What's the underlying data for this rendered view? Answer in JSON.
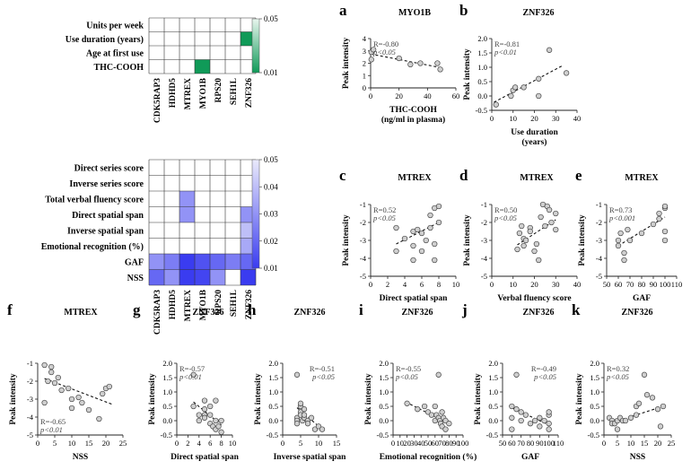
{
  "figure": {
    "heatmap_top": {
      "rows": [
        "Units per week",
        "Use duration (years)",
        "Age at first use",
        "THC-COOH"
      ],
      "cols": [
        "CDK5RAP3",
        "HDHD5",
        "MTREX",
        "MYO1B",
        "RPS20",
        "SEH1L",
        "ZNF326"
      ],
      "cells": [
        {
          "r": 1,
          "c": 6,
          "value": 0.01
        },
        {
          "r": 3,
          "c": 3,
          "value": 0.01
        }
      ],
      "colorbar": {
        "ticks": [
          0.05,
          0.01
        ],
        "range": [
          0.01,
          0.05
        ],
        "color_low": "#109a58",
        "color_high": "#e8f6ee"
      }
    },
    "heatmap_bottom": {
      "rows": [
        "Direct series score",
        "Inverse series score",
        "Total verbal fluency score",
        "Direct spatial span",
        "Inverse spatial span",
        "Emotional recognition (%)",
        "GAF",
        "NSS"
      ],
      "cols": [
        "CDK5RAP3",
        "HDHD5",
        "MTREX",
        "MYO1B",
        "RPS20",
        "SEH1L",
        "ZNF326"
      ],
      "cells": [
        {
          "r": 2,
          "c": 2,
          "value": 0.03
        },
        {
          "r": 3,
          "c": 2,
          "value": 0.03
        },
        {
          "r": 3,
          "c": 6,
          "value": 0.03
        },
        {
          "r": 4,
          "c": 6,
          "value": 0.04
        },
        {
          "r": 5,
          "c": 6,
          "value": 0.035
        },
        {
          "r": 6,
          "c": 0,
          "value": 0.03
        },
        {
          "r": 6,
          "c": 1,
          "value": 0.025
        },
        {
          "r": 6,
          "c": 2,
          "value": 0.01
        },
        {
          "r": 6,
          "c": 3,
          "value": 0.015
        },
        {
          "r": 6,
          "c": 4,
          "value": 0.02
        },
        {
          "r": 6,
          "c": 5,
          "value": 0.025
        },
        {
          "r": 6,
          "c": 6,
          "value": 0.02
        },
        {
          "r": 7,
          "c": 0,
          "value": 0.02
        },
        {
          "r": 7,
          "c": 1,
          "value": 0.03
        },
        {
          "r": 7,
          "c": 2,
          "value": 0.01
        },
        {
          "r": 7,
          "c": 3,
          "value": 0.012
        },
        {
          "r": 7,
          "c": 4,
          "value": 0.03
        },
        {
          "r": 7,
          "c": 6,
          "value": 0.01
        }
      ],
      "colorbar": {
        "ticks": [
          0.05,
          0.04,
          0.03,
          0.02,
          0.01
        ],
        "range": [
          0.01,
          0.05
        ],
        "color_low": "#3a3cf0",
        "color_high": "#eaeafb"
      }
    }
  },
  "chart_data": [
    {
      "id": "a",
      "type": "scatter",
      "title": "MYO1B",
      "xlabel": "THC-COOH",
      "xlabel2": "(ng/ml in plasma)",
      "ylabel": "Peak intensity",
      "xlim": [
        0,
        60
      ],
      "ylim": [
        0,
        4
      ],
      "xticks": [
        0,
        20,
        40,
        60
      ],
      "yticks": [
        0,
        1,
        2,
        3,
        4
      ],
      "r_text": "R=-0.80",
      "p_text": "p<0.05",
      "stat_pos": "top-left",
      "points": [
        [
          0.5,
          2.3
        ],
        [
          0.5,
          2.9
        ],
        [
          2,
          3.1
        ],
        [
          20,
          2.4
        ],
        [
          28,
          1.9
        ],
        [
          35,
          2.0
        ],
        [
          47,
          2.0
        ],
        [
          49,
          1.5
        ]
      ],
      "fit": [
        [
          0,
          2.75
        ],
        [
          49,
          1.65
        ]
      ]
    },
    {
      "id": "b",
      "type": "scatter",
      "title": "ZNF326",
      "xlabel": "Use duration",
      "xlabel2": "(years)",
      "ylabel": "Peak intensity",
      "xlim": [
        0,
        40
      ],
      "ylim": [
        -0.5,
        2.0
      ],
      "xticks": [
        0,
        10,
        20,
        30,
        40
      ],
      "yticks": [
        -0.5,
        0.0,
        0.5,
        1.0,
        1.5,
        2.0
      ],
      "r_text": "R=-0.81",
      "p_text": "p<0.01",
      "stat_pos": "top-left",
      "points": [
        [
          2,
          -0.3
        ],
        [
          9,
          0.0
        ],
        [
          10,
          0.2
        ],
        [
          11,
          0.3
        ],
        [
          15,
          0.3
        ],
        [
          22,
          0.6
        ],
        [
          22,
          0.0
        ],
        [
          27,
          1.6
        ],
        [
          35,
          0.8
        ]
      ],
      "fit": [
        [
          1,
          -0.22
        ],
        [
          33,
          1.05
        ]
      ]
    },
    {
      "id": "c",
      "type": "scatter",
      "title": "MTREX",
      "xlabel": "Direct spatial span",
      "ylabel": "Peak intensity",
      "xlim": [
        0,
        10
      ],
      "ylim": [
        -5,
        -1
      ],
      "xticks": [
        0,
        2,
        4,
        6,
        8,
        10
      ],
      "yticks": [
        -5,
        -4,
        -3,
        -2,
        -1
      ],
      "r_text": "R=0.52",
      "p_text": "p<0.05",
      "stat_pos": "top-left",
      "points": [
        [
          3,
          -2.3
        ],
        [
          3,
          -3.6
        ],
        [
          4,
          -2.9
        ],
        [
          5,
          -2.5
        ],
        [
          5,
          -3.3
        ],
        [
          5,
          -4.1
        ],
        [
          5.5,
          -2.4
        ],
        [
          6,
          -3.6
        ],
        [
          6,
          -2.6
        ],
        [
          6.5,
          -3.0
        ],
        [
          7,
          -1.6
        ],
        [
          7,
          -2.3
        ],
        [
          7.5,
          -1.2
        ],
        [
          7.5,
          -3.2
        ],
        [
          8,
          -2.0
        ],
        [
          8,
          -1.1
        ],
        [
          7.5,
          -4.1
        ]
      ],
      "fit": [
        [
          3,
          -3.2
        ],
        [
          8,
          -2.0
        ]
      ]
    },
    {
      "id": "d",
      "type": "scatter",
      "title": "MTREX",
      "xlabel": "Verbal fluency score",
      "ylabel": "Peak intensity",
      "xlim": [
        0,
        40
      ],
      "ylim": [
        -5,
        -1
      ],
      "xticks": [
        0,
        10,
        20,
        30,
        40
      ],
      "yticks": [
        -5,
        -4,
        -3,
        -2,
        -1
      ],
      "r_text": "R=0.50",
      "p_text": "p<0.05",
      "stat_pos": "top-left",
      "points": [
        [
          12,
          -3.5
        ],
        [
          13,
          -2.6
        ],
        [
          14,
          -2.2
        ],
        [
          15,
          -3.3
        ],
        [
          15,
          -2.9
        ],
        [
          16,
          -3.0
        ],
        [
          18,
          -2.3
        ],
        [
          18,
          -2.5
        ],
        [
          20,
          -3.6
        ],
        [
          21,
          -3.2
        ],
        [
          22,
          -4.1
        ],
        [
          23,
          -1.7
        ],
        [
          24,
          -1.0
        ],
        [
          25,
          -2.2
        ],
        [
          26,
          -1.1
        ],
        [
          27,
          -1.3
        ],
        [
          28,
          -2.0
        ],
        [
          30,
          -1.5
        ],
        [
          30,
          -2.4
        ]
      ],
      "fit": [
        [
          12,
          -3.25
        ],
        [
          30,
          -1.85
        ]
      ]
    },
    {
      "id": "e",
      "type": "scatter",
      "title": "MTREX",
      "xlabel": "GAF",
      "ylabel": "Peak intensity",
      "xlim": [
        50,
        110
      ],
      "ylim": [
        -5,
        -1
      ],
      "xticks": [
        50,
        60,
        70,
        80,
        90,
        100,
        110
      ],
      "yticks": [
        -5,
        -4,
        -3,
        -2,
        -1
      ],
      "r_text": "R=0.73",
      "p_text": "p<0.001",
      "stat_pos": "top-left",
      "points": [
        [
          60,
          -3.0
        ],
        [
          60,
          -3.3
        ],
        [
          62,
          -2.6
        ],
        [
          65,
          -3.7
        ],
        [
          65,
          -4.1
        ],
        [
          68,
          -2.4
        ],
        [
          70,
          -3.0
        ],
        [
          80,
          -2.6
        ],
        [
          90,
          -2.1
        ],
        [
          95,
          -1.5
        ],
        [
          95,
          -1.8
        ],
        [
          100,
          -1.2
        ],
        [
          100,
          -1.1
        ],
        [
          100,
          -2.5
        ],
        [
          100,
          -3.0
        ]
      ],
      "fit": [
        [
          60,
          -3.3
        ],
        [
          100,
          -1.7
        ]
      ]
    },
    {
      "id": "f",
      "type": "scatter",
      "title": "MTREX",
      "xlabel": "NSS",
      "ylabel": "Peak intensity",
      "xlim": [
        0,
        25
      ],
      "ylim": [
        -5,
        -1
      ],
      "xticks": [
        0,
        5,
        10,
        15,
        20,
        25
      ],
      "yticks": [
        -5,
        -4,
        -3,
        -2,
        -1
      ],
      "r_text": "R=-0.65",
      "p_text": "p<0.01",
      "stat_pos": "bottom-left",
      "points": [
        [
          2,
          -1.1
        ],
        [
          2,
          -3.2
        ],
        [
          3,
          -2.0
        ],
        [
          4,
          -1.2
        ],
        [
          4,
          -1.5
        ],
        [
          5,
          -2.1
        ],
        [
          6,
          -1.8
        ],
        [
          7,
          -2.5
        ],
        [
          9,
          -2.4
        ],
        [
          10,
          -3.0
        ],
        [
          10,
          -3.5
        ],
        [
          12,
          -2.9
        ],
        [
          13,
          -3.2
        ],
        [
          15,
          -3.6
        ],
        [
          18,
          -4.1
        ],
        [
          19,
          -2.7
        ],
        [
          20,
          -2.4
        ],
        [
          21,
          -2.3
        ]
      ],
      "fit": [
        [
          2,
          -1.85
        ],
        [
          22,
          -3.3
        ]
      ]
    },
    {
      "id": "g",
      "type": "scatter",
      "title": "ZNF326",
      "xlabel": "Direct spatial span",
      "ylabel": "Peak intensity",
      "xlim": [
        0,
        10
      ],
      "ylim": [
        -0.5,
        2.0
      ],
      "xticks": [
        0,
        2,
        4,
        6,
        8,
        10
      ],
      "yticks": [
        -0.5,
        0.0,
        0.5,
        1.0,
        1.5,
        2.0
      ],
      "r_text": "R=-0.57",
      "p_text": "p<0.01",
      "stat_pos": "top-left",
      "points": [
        [
          3,
          1.6
        ],
        [
          3,
          0.5
        ],
        [
          4,
          0.2
        ],
        [
          4,
          0.0
        ],
        [
          5,
          0.7
        ],
        [
          5,
          0.2
        ],
        [
          5,
          0.4
        ],
        [
          5,
          0.1
        ],
        [
          6,
          0.2
        ],
        [
          6,
          0.5
        ],
        [
          6,
          -0.1
        ],
        [
          6.5,
          -0.2
        ],
        [
          7,
          0.7
        ],
        [
          7,
          0.0
        ],
        [
          7,
          -0.3
        ],
        [
          7.5,
          -0.2
        ],
        [
          8,
          -0.4
        ],
        [
          8,
          0.0
        ]
      ],
      "fit": [
        [
          3,
          0.65
        ],
        [
          8,
          -0.15
        ]
      ]
    },
    {
      "id": "h",
      "type": "scatter",
      "title": "ZNF326",
      "xlabel": "Inverse spatial span",
      "ylabel": "Peak intensity",
      "xlim": [
        0,
        15
      ],
      "ylim": [
        -0.5,
        2.0
      ],
      "xticks": [
        0,
        5,
        10,
        15
      ],
      "yticks": [
        -0.5,
        0.0,
        0.5,
        1.0,
        1.5,
        2.0
      ],
      "r_text": "R=-0.51",
      "p_text": "p<0.05",
      "stat_pos": "top-right",
      "points": [
        [
          4,
          1.6
        ],
        [
          4,
          0.1
        ],
        [
          4,
          0.0
        ],
        [
          4,
          -0.1
        ],
        [
          5,
          0.5
        ],
        [
          5,
          0.6
        ],
        [
          5,
          0.3
        ],
        [
          5,
          0.2
        ],
        [
          5.5,
          0.0
        ],
        [
          6,
          0.1
        ],
        [
          6,
          0.2
        ],
        [
          6,
          0.4
        ],
        [
          7,
          0.0
        ],
        [
          7,
          -0.1
        ],
        [
          8,
          0.1
        ],
        [
          9,
          -0.3
        ],
        [
          10,
          -0.2
        ],
        [
          11,
          -0.3
        ]
      ],
      "fit": [
        [
          4,
          0.45
        ],
        [
          11,
          -0.3
        ]
      ]
    },
    {
      "id": "i",
      "type": "scatter",
      "title": "ZNF326",
      "xlabel": "Emotional recognition (%)",
      "ylabel": "Peak intensity",
      "xlim": [
        0,
        100
      ],
      "ylim": [
        -0.5,
        2.0
      ],
      "xticks": [
        0,
        10,
        20,
        30,
        40,
        50,
        60,
        70,
        80,
        90,
        100
      ],
      "yticks": [
        -0.5,
        0.0,
        0.5,
        1.0,
        1.5,
        2.0
      ],
      "r_text": "R=-0.55",
      "p_text": "p<0.05",
      "stat_pos": "top-left",
      "points": [
        [
          20,
          0.6
        ],
        [
          35,
          0.4
        ],
        [
          45,
          0.5
        ],
        [
          50,
          0.3
        ],
        [
          55,
          0.2
        ],
        [
          60,
          0.0
        ],
        [
          60,
          0.5
        ],
        [
          62,
          0.2
        ],
        [
          65,
          0.1
        ],
        [
          65,
          1.6
        ],
        [
          67,
          0.0
        ],
        [
          68,
          -0.1
        ],
        [
          70,
          0.3
        ],
        [
          70,
          -0.2
        ],
        [
          72,
          0.1
        ],
        [
          75,
          -0.3
        ],
        [
          75,
          0.0
        ],
        [
          80,
          -0.1
        ]
      ],
      "fit": [
        [
          18,
          0.65
        ],
        [
          80,
          -0.1
        ]
      ]
    },
    {
      "id": "j",
      "type": "scatter",
      "title": "ZNF326",
      "xlabel": "GAF",
      "ylabel": "Peak intensity",
      "xlim": [
        50,
        110
      ],
      "ylim": [
        -0.5,
        2.0
      ],
      "xticks": [
        50,
        60,
        70,
        80,
        90,
        100,
        110
      ],
      "yticks": [
        -0.5,
        0.0,
        0.5,
        1.0,
        1.5,
        2.0
      ],
      "r_text": "R=-0.49",
      "p_text": "p<0.05",
      "stat_pos": "top-right",
      "points": [
        [
          60,
          0.5
        ],
        [
          60,
          0.1
        ],
        [
          60,
          -0.3
        ],
        [
          65,
          1.6
        ],
        [
          65,
          0.4
        ],
        [
          70,
          0.3
        ],
        [
          70,
          0.0
        ],
        [
          75,
          0.2
        ],
        [
          80,
          -0.1
        ],
        [
          85,
          0.0
        ],
        [
          90,
          0.1
        ],
        [
          90,
          -0.2
        ],
        [
          95,
          0.0
        ],
        [
          100,
          0.2
        ],
        [
          100,
          0.3
        ],
        [
          100,
          -0.1
        ],
        [
          100,
          -0.3
        ]
      ],
      "fit": [
        [
          60,
          0.45
        ],
        [
          100,
          -0.15
        ]
      ]
    },
    {
      "id": "k",
      "type": "scatter",
      "title": "ZNF326",
      "xlabel": "NSS",
      "ylabel": "Peak intensity",
      "xlim": [
        0,
        25
      ],
      "ylim": [
        -0.5,
        2.0
      ],
      "xticks": [
        0,
        5,
        10,
        15,
        20,
        25
      ],
      "yticks": [
        -0.5,
        0.0,
        0.5,
        1.0,
        1.5,
        2.0
      ],
      "r_text": "R=0.32",
      "p_text": "p<0.05",
      "stat_pos": "top-left",
      "points": [
        [
          2,
          0.1
        ],
        [
          3,
          0.0
        ],
        [
          3,
          -0.1
        ],
        [
          4,
          -0.1
        ],
        [
          5,
          0.0
        ],
        [
          5,
          -0.3
        ],
        [
          6,
          0.1
        ],
        [
          7,
          0.0
        ],
        [
          8,
          0.0
        ],
        [
          10,
          0.1
        ],
        [
          12,
          0.2
        ],
        [
          12,
          0.5
        ],
        [
          13,
          0.6
        ],
        [
          15,
          1.6
        ],
        [
          16,
          0.9
        ],
        [
          18,
          0.8
        ],
        [
          20,
          0.4
        ],
        [
          21,
          -0.2
        ],
        [
          22,
          0.5
        ]
      ],
      "fit": [
        [
          2,
          -0.1
        ],
        [
          22,
          0.5
        ]
      ]
    }
  ]
}
